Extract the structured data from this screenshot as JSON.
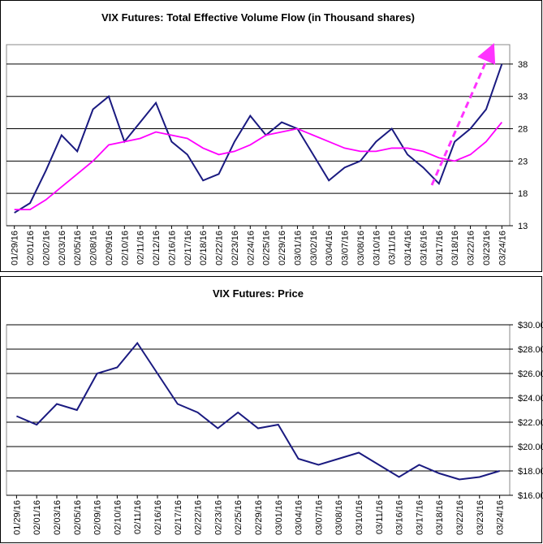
{
  "chart_data": [
    {
      "type": "line",
      "title": "VIX Futures: Total Effective Volume Flow (in Thousand shares)",
      "categories": [
        "01/29/16",
        "02/01/16",
        "02/02/16",
        "02/03/16",
        "02/05/16",
        "02/08/16",
        "02/09/16",
        "02/10/16",
        "02/11/16",
        "02/12/16",
        "02/16/16",
        "02/17/16",
        "02/18/16",
        "02/22/16",
        "02/23/16",
        "02/24/16",
        "02/25/16",
        "02/29/16",
        "03/01/16",
        "03/02/16",
        "03/04/16",
        "03/07/16",
        "03/08/16",
        "03/10/16",
        "03/11/16",
        "03/14/16",
        "03/16/16",
        "03/17/16",
        "03/18/16",
        "03/22/16",
        "03/23/16",
        "03/24/16"
      ],
      "series": [
        {
          "color": "#1a1a80",
          "values": [
            15,
            16.5,
            21.5,
            27,
            24.5,
            31,
            33,
            26,
            29,
            32,
            26,
            24,
            20,
            21,
            26,
            30,
            27,
            29,
            28,
            24,
            20,
            22,
            23,
            26,
            28,
            24,
            22,
            19.5,
            26,
            28,
            31,
            38
          ]
        },
        {
          "color": "#ff00ff",
          "values": [
            15.5,
            15.5,
            17,
            19,
            21,
            23,
            25.5,
            26,
            26.5,
            27.5,
            27,
            26.5,
            25,
            24,
            24.5,
            25.5,
            27,
            27.5,
            28,
            27,
            26,
            25,
            24.5,
            24.5,
            25,
            25,
            24.5,
            23.5,
            23,
            24,
            26,
            29
          ]
        }
      ],
      "ylim": [
        13,
        41
      ],
      "yticks": [
        13,
        18,
        23,
        28,
        33,
        38
      ],
      "grid": true
    },
    {
      "type": "line",
      "title": "VIX Futures: Price",
      "categories": [
        "01/29/16",
        "02/01/16",
        "02/03/16",
        "02/05/16",
        "02/09/16",
        "02/10/16",
        "02/11/16",
        "02/16/16",
        "02/17/16",
        "02/22/16",
        "02/23/16",
        "02/25/16",
        "02/29/16",
        "03/01/16",
        "03/04/16",
        "03/07/16",
        "03/08/16",
        "03/10/16",
        "03/11/16",
        "03/16/16",
        "03/17/16",
        "03/18/16",
        "03/22/16",
        "03/23/16",
        "03/24/16"
      ],
      "series": [
        {
          "color": "#1a1a80",
          "values": [
            22.5,
            21.8,
            23.5,
            23,
            26,
            26.5,
            28.5,
            26,
            23.5,
            22.8,
            21.5,
            22.8,
            21.5,
            21.8,
            19,
            18.5,
            19,
            19.5,
            18.5,
            17.5,
            18.5,
            17.8,
            17.3,
            17.5,
            18
          ]
        }
      ],
      "ylim": [
        16,
        30
      ],
      "yticks": [
        {
          "value": 16,
          "label": "$16.00"
        },
        {
          "value": 18,
          "label": "$18.00"
        },
        {
          "value": 20,
          "label": "$20.00"
        },
        {
          "value": 22,
          "label": "$22.00"
        },
        {
          "value": 24,
          "label": "$24.00"
        },
        {
          "value": 26,
          "label": "$26.00"
        },
        {
          "value": 28,
          "label": "$28.00"
        },
        {
          "value": 30,
          "label": "$30.00"
        }
      ],
      "grid": true
    }
  ]
}
